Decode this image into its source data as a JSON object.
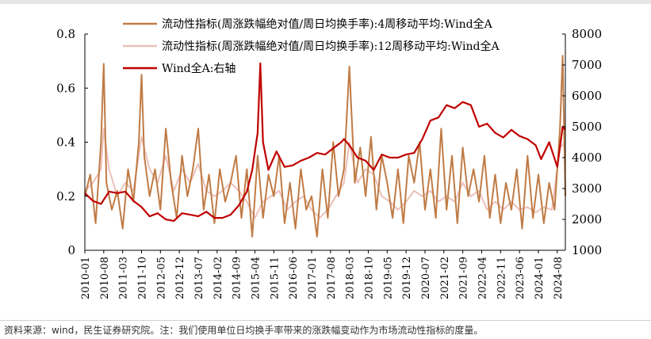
{
  "colors": {
    "series_4w": "#c07b45",
    "series_12w": "#ecc0b9",
    "series_index": "#c00000",
    "axis": "#000000",
    "header": "#b8b8b8"
  },
  "footer": {
    "source_note": "资料来源：wind，民生证券研究院。注：我们使用单位日均换手率带来的涨跌幅变动作为市场流动性指标的度量。"
  },
  "chart_data": {
    "type": "line",
    "title": "",
    "xlabel": "",
    "ylabel_left": "",
    "ylabel_right": "",
    "ylim_left": [
      0,
      0.8
    ],
    "yticks_left": [
      "0",
      "0.2",
      "0.4",
      "0.6",
      "0.8"
    ],
    "ylim_right": [
      1000,
      8000
    ],
    "yticks_right": [
      "1000",
      "2000",
      "3000",
      "4000",
      "5000",
      "6000",
      "7000",
      "8000"
    ],
    "x_tick_labels": [
      "2010-01",
      "2010-08",
      "2011-03",
      "2011-10",
      "2012-05",
      "2012-12",
      "2013-07",
      "2014-02",
      "2014-09",
      "2015-04",
      "2015-11",
      "2016-06",
      "2017-01",
      "2017-08",
      "2018-03",
      "2018-10",
      "2019-05",
      "2019-12",
      "2020-07",
      "2021-02",
      "2021-09",
      "2022-04",
      "2022-11",
      "2023-06",
      "2024-01",
      "2024-08"
    ],
    "x_start": "2010-01",
    "x_end": "2024-11",
    "grid": false,
    "legend_position": "top-center",
    "series": [
      {
        "name": "流动性指标(周涨跌幅绝对值/周日均换手率):4周移动平均:Wind全A",
        "axis": "left",
        "x": [
          "2010-01",
          "2010-03",
          "2010-05",
          "2010-07",
          "2010-08",
          "2010-09",
          "2010-11",
          "2011-01",
          "2011-03",
          "2011-05",
          "2011-07",
          "2011-09",
          "2011-10",
          "2011-11",
          "2012-01",
          "2012-03",
          "2012-05",
          "2012-07",
          "2012-09",
          "2012-11",
          "2013-01",
          "2013-03",
          "2013-05",
          "2013-07",
          "2013-09",
          "2013-11",
          "2014-01",
          "2014-03",
          "2014-05",
          "2014-07",
          "2014-09",
          "2014-11",
          "2015-01",
          "2015-03",
          "2015-05",
          "2015-07",
          "2015-09",
          "2015-11",
          "2016-01",
          "2016-03",
          "2016-05",
          "2016-07",
          "2016-09",
          "2016-11",
          "2017-01",
          "2017-03",
          "2017-05",
          "2017-07",
          "2017-09",
          "2017-11",
          "2018-01",
          "2018-03",
          "2018-05",
          "2018-07",
          "2018-09",
          "2018-11",
          "2019-01",
          "2019-03",
          "2019-05",
          "2019-07",
          "2019-09",
          "2019-11",
          "2020-01",
          "2020-03",
          "2020-05",
          "2020-07",
          "2020-09",
          "2020-11",
          "2021-01",
          "2021-03",
          "2021-05",
          "2021-07",
          "2021-09",
          "2021-11",
          "2022-01",
          "2022-03",
          "2022-05",
          "2022-07",
          "2022-09",
          "2022-11",
          "2023-01",
          "2023-03",
          "2023-05",
          "2023-07",
          "2023-09",
          "2023-11",
          "2024-01",
          "2024-03",
          "2024-05",
          "2024-07",
          "2024-09",
          "2024-10",
          "2024-11"
        ],
        "values": [
          0.2,
          0.28,
          0.1,
          0.4,
          0.69,
          0.25,
          0.15,
          0.22,
          0.08,
          0.3,
          0.18,
          0.4,
          0.65,
          0.35,
          0.2,
          0.3,
          0.15,
          0.45,
          0.25,
          0.12,
          0.35,
          0.2,
          0.3,
          0.45,
          0.15,
          0.28,
          0.1,
          0.3,
          0.18,
          0.25,
          0.35,
          0.12,
          0.3,
          0.05,
          0.35,
          0.12,
          0.28,
          0.2,
          0.35,
          0.1,
          0.25,
          0.08,
          0.3,
          0.15,
          0.2,
          0.05,
          0.3,
          0.12,
          0.4,
          0.2,
          0.3,
          0.68,
          0.25,
          0.38,
          0.2,
          0.42,
          0.15,
          0.35,
          0.25,
          0.12,
          0.3,
          0.1,
          0.35,
          0.25,
          0.4,
          0.15,
          0.3,
          0.12,
          0.45,
          0.15,
          0.35,
          0.1,
          0.38,
          0.2,
          0.3,
          0.18,
          0.35,
          0.12,
          0.28,
          0.1,
          0.25,
          0.15,
          0.3,
          0.08,
          0.35,
          0.12,
          0.28,
          0.1,
          0.25,
          0.15,
          0.45,
          0.72,
          0.2
        ]
      },
      {
        "name": "流动性指标(周涨跌幅绝对值/周日均换手率):12周移动平均:Wind全A",
        "axis": "left",
        "x": [
          "2010-01",
          "2010-04",
          "2010-07",
          "2010-08",
          "2010-10",
          "2011-01",
          "2011-04",
          "2011-07",
          "2011-10",
          "2012-01",
          "2012-04",
          "2012-07",
          "2012-10",
          "2013-01",
          "2013-04",
          "2013-07",
          "2013-10",
          "2014-01",
          "2014-04",
          "2014-07",
          "2014-10",
          "2015-01",
          "2015-04",
          "2015-07",
          "2015-10",
          "2016-01",
          "2016-04",
          "2016-07",
          "2016-10",
          "2017-01",
          "2017-04",
          "2017-07",
          "2017-10",
          "2018-01",
          "2018-03",
          "2018-06",
          "2018-09",
          "2018-12",
          "2019-03",
          "2019-06",
          "2019-09",
          "2019-12",
          "2020-03",
          "2020-06",
          "2020-09",
          "2020-12",
          "2021-03",
          "2021-06",
          "2021-09",
          "2021-12",
          "2022-03",
          "2022-06",
          "2022-09",
          "2022-12",
          "2023-03",
          "2023-06",
          "2023-09",
          "2023-12",
          "2024-03",
          "2024-06",
          "2024-09",
          "2024-11"
        ],
        "values": [
          0.22,
          0.25,
          0.3,
          0.45,
          0.3,
          0.2,
          0.25,
          0.22,
          0.42,
          0.3,
          0.25,
          0.35,
          0.22,
          0.3,
          0.25,
          0.32,
          0.22,
          0.2,
          0.22,
          0.25,
          0.22,
          0.18,
          0.12,
          0.18,
          0.2,
          0.22,
          0.15,
          0.18,
          0.2,
          0.15,
          0.12,
          0.15,
          0.2,
          0.25,
          0.4,
          0.25,
          0.3,
          0.28,
          0.2,
          0.18,
          0.15,
          0.18,
          0.22,
          0.2,
          0.22,
          0.18,
          0.2,
          0.18,
          0.25,
          0.2,
          0.22,
          0.15,
          0.18,
          0.15,
          0.18,
          0.15,
          0.16,
          0.14,
          0.16,
          0.15,
          0.38,
          0.4
        ]
      },
      {
        "name": "Wind全A:右轴",
        "axis": "right",
        "x": [
          "2010-01",
          "2010-04",
          "2010-07",
          "2010-10",
          "2011-01",
          "2011-04",
          "2011-07",
          "2011-10",
          "2012-01",
          "2012-04",
          "2012-07",
          "2012-10",
          "2013-01",
          "2013-04",
          "2013-07",
          "2013-10",
          "2014-01",
          "2014-04",
          "2014-07",
          "2014-10",
          "2015-01",
          "2015-03",
          "2015-05",
          "2015-06",
          "2015-07",
          "2015-09",
          "2015-12",
          "2016-03",
          "2016-06",
          "2016-09",
          "2016-12",
          "2017-03",
          "2017-06",
          "2017-09",
          "2017-12",
          "2018-01",
          "2018-03",
          "2018-06",
          "2018-09",
          "2018-12",
          "2019-03",
          "2019-06",
          "2019-09",
          "2019-12",
          "2020-03",
          "2020-06",
          "2020-09",
          "2020-12",
          "2021-03",
          "2021-06",
          "2021-09",
          "2021-12",
          "2022-03",
          "2022-06",
          "2022-09",
          "2022-12",
          "2023-03",
          "2023-06",
          "2023-09",
          "2023-12",
          "2024-02",
          "2024-05",
          "2024-08",
          "2024-10",
          "2024-11"
        ],
        "values": [
          2850,
          2600,
          2500,
          2900,
          2850,
          2900,
          2600,
          2400,
          2100,
          2200,
          2000,
          1950,
          2200,
          2150,
          2100,
          2250,
          2050,
          2050,
          2150,
          2450,
          2900,
          3600,
          4800,
          7050,
          4500,
          3600,
          4200,
          3700,
          3750,
          3900,
          4000,
          4150,
          4100,
          4300,
          4500,
          4600,
          4400,
          4000,
          3900,
          3600,
          4100,
          4000,
          4000,
          4100,
          4150,
          4600,
          5200,
          5300,
          5700,
          5600,
          5800,
          5700,
          5000,
          5100,
          4800,
          4650,
          4900,
          4700,
          4600,
          4400,
          3950,
          4500,
          3700,
          5000,
          4900
        ]
      }
    ]
  }
}
